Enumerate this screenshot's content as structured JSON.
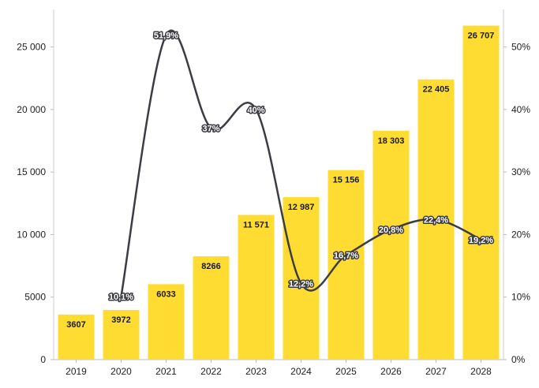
{
  "chart_data": {
    "type": "bar",
    "title": "",
    "categories": [
      "2019",
      "2020",
      "2021",
      "2022",
      "2023",
      "2024",
      "2025",
      "2026",
      "2027",
      "2028"
    ],
    "series": [
      {
        "type": "bar",
        "axis": "left",
        "values": [
          3607,
          3972,
          6033,
          8266,
          11571,
          12987,
          15156,
          18303,
          22405,
          26707
        ],
        "labels": [
          "3607",
          "3972",
          "6033",
          "8266",
          "11 571",
          "12 987",
          "15 156",
          "18 303",
          "22 405",
          "26 707"
        ],
        "color": "#FFDC32"
      },
      {
        "type": "line",
        "axis": "right",
        "values": [
          null,
          10.1,
          51.9,
          37,
          40,
          12.2,
          16.7,
          20.8,
          22.4,
          19.2
        ],
        "labels": [
          "",
          "10,1%",
          "51,9%",
          "37%",
          "40%",
          "12,2%",
          "16,7%",
          "20,8%",
          "22,4%",
          "19,2%"
        ],
        "color": "#3C3C46"
      }
    ],
    "y_left": {
      "range": [
        0,
        28000
      ],
      "ticks": [
        0,
        5000,
        10000,
        15000,
        20000,
        25000
      ],
      "tick_labels": [
        "0",
        "5000",
        "10 000",
        "15 000",
        "20 000",
        "25 000"
      ]
    },
    "y_right": {
      "range": [
        0,
        56
      ],
      "ticks": [
        0,
        10,
        20,
        30,
        40,
        50
      ],
      "tick_labels": [
        "0%",
        "10%",
        "20%",
        "30%",
        "40%",
        "50%"
      ]
    },
    "grid": false,
    "legend": "none"
  }
}
